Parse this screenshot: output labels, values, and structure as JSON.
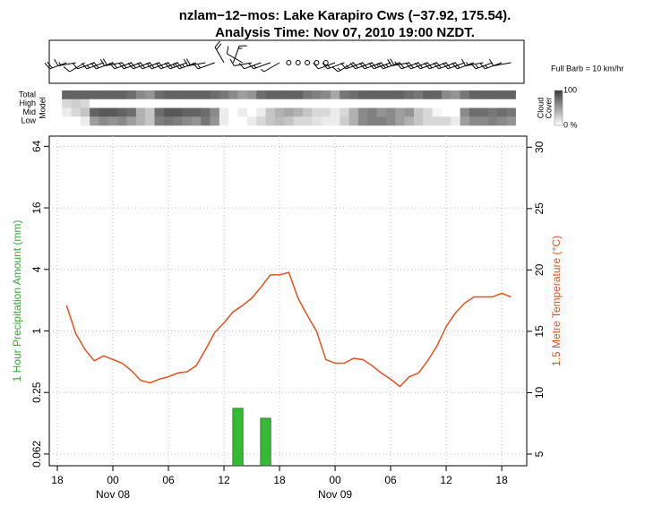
{
  "chart_data": [
    {
      "type": "barb",
      "note": "Full Barb = 10 km/hr",
      "xlim": [
        17.13,
        68.7
      ],
      "x": [
        19,
        20,
        21,
        22,
        23,
        24,
        25,
        26,
        27,
        28,
        29,
        30,
        31,
        32,
        33,
        34,
        35,
        36,
        37,
        38,
        39,
        40,
        41,
        42,
        43,
        44,
        45,
        46,
        47,
        48,
        49,
        50,
        51,
        52,
        53,
        54,
        55,
        56,
        57,
        58,
        59,
        60,
        61,
        62,
        63,
        64,
        65,
        66,
        67
      ],
      "speed": [
        20,
        15,
        10,
        10,
        15,
        20,
        20,
        20,
        20,
        20,
        20,
        20,
        20,
        25,
        25,
        20,
        15,
        20,
        15,
        10,
        10,
        10,
        15,
        5,
        0,
        0,
        0,
        0,
        0,
        10,
        15,
        15,
        15,
        20,
        20,
        25,
        25,
        25,
        20,
        20,
        20,
        20,
        20,
        20,
        20,
        15,
        15,
        15,
        10
      ],
      "direction": [
        250,
        260,
        240,
        250,
        250,
        250,
        260,
        250,
        250,
        250,
        250,
        250,
        250,
        250,
        250,
        260,
        250,
        330,
        20,
        300,
        260,
        250,
        250,
        240,
        0,
        0,
        0,
        0,
        0,
        250,
        250,
        240,
        250,
        250,
        250,
        250,
        250,
        260,
        250,
        250,
        250,
        250,
        250,
        250,
        250,
        260,
        250,
        250,
        260
      ]
    },
    {
      "type": "heatmap",
      "axis_label": "Model",
      "legend_title": [
        "Cloud",
        "Cover"
      ],
      "legend_ticks": [
        100,
        {
          "value": 0,
          "label": "0 %"
        }
      ],
      "low_color": "#ffffff",
      "high_color": "#3c3c3c",
      "xlim": [
        17.13,
        68.7
      ],
      "x": [
        19,
        20,
        21,
        22,
        23,
        24,
        25,
        26,
        27,
        28,
        29,
        30,
        31,
        32,
        33,
        34,
        35,
        36,
        37,
        38,
        39,
        40,
        41,
        42,
        43,
        44,
        45,
        46,
        47,
        48,
        49,
        50,
        51,
        52,
        53,
        54,
        55,
        56,
        57,
        58,
        59,
        60,
        61,
        62,
        63,
        64,
        65,
        66,
        67
      ],
      "rows": [
        {
          "name": "Total",
          "values": [
            80,
            80,
            80,
            80,
            80,
            80,
            80,
            75,
            60,
            55,
            75,
            80,
            80,
            80,
            80,
            80,
            75,
            70,
            60,
            50,
            55,
            75,
            80,
            80,
            80,
            80,
            70,
            65,
            60,
            45,
            70,
            75,
            80,
            80,
            80,
            80,
            80,
            75,
            70,
            80,
            80,
            60,
            55,
            70,
            80,
            80,
            80,
            80,
            80
          ]
        },
        {
          "name": "High",
          "values": [
            20,
            25,
            20,
            0,
            0,
            0,
            0,
            0,
            0,
            0,
            0,
            0,
            0,
            0,
            0,
            0,
            0,
            0,
            0,
            0,
            0,
            0,
            0,
            0,
            0,
            0,
            0,
            0,
            0,
            0,
            0,
            0,
            0,
            0,
            0,
            0,
            0,
            0,
            0,
            0,
            0,
            0,
            0,
            0,
            0,
            0,
            0,
            0,
            0
          ]
        },
        {
          "name": "Mid",
          "values": [
            10,
            20,
            30,
            80,
            85,
            85,
            80,
            75,
            40,
            30,
            75,
            85,
            85,
            80,
            80,
            75,
            60,
            10,
            0,
            10,
            0,
            10,
            30,
            40,
            45,
            40,
            30,
            20,
            20,
            10,
            20,
            40,
            60,
            65,
            55,
            60,
            50,
            55,
            30,
            20,
            5,
            0,
            0,
            60,
            75,
            75,
            70,
            75,
            70
          ]
        },
        {
          "name": "Low",
          "values": [
            0,
            0,
            10,
            50,
            60,
            55,
            60,
            50,
            40,
            30,
            65,
            70,
            65,
            60,
            55,
            70,
            55,
            10,
            0,
            0,
            10,
            20,
            30,
            35,
            30,
            20,
            20,
            15,
            10,
            10,
            25,
            40,
            60,
            65,
            65,
            60,
            50,
            40,
            30,
            20,
            20,
            20,
            10,
            50,
            60,
            60,
            65,
            60,
            55
          ]
        }
      ]
    },
    {
      "type": "line",
      "title": "nzlam−12−mos: Lake Karapiro Cws (−37.92, 175.54).",
      "subtitle": "Analysis Time: Nov 07, 2010 19:00 NZDT.",
      "ylabel": "1 Hour Precipitation Amount (mm)",
      "ylabel_color": "#33aa33",
      "y2label": "1.5 Metre Temperature (°C)",
      "y2label_color": "#e8501e",
      "xlim": [
        17.13,
        68.7
      ],
      "xticks": [
        18,
        {
          "value": 24,
          "label": "00"
        },
        {
          "value": 30,
          "label": "06"
        },
        {
          "value": 36,
          "label": "12"
        },
        {
          "value": 42,
          "label": "18"
        },
        {
          "value": 48,
          "label": "00"
        },
        {
          "value": 54,
          "label": "06"
        },
        {
          "value": 60,
          "label": "12"
        },
        {
          "value": 66,
          "label": "18"
        }
      ],
      "xdates": [
        {
          "value": 24,
          "label": "Nov 08"
        },
        {
          "value": 48,
          "label": "Nov 09"
        }
      ],
      "ylog": true,
      "ylim": [
        0.048,
        80.5
      ],
      "yticks": [
        {
          "value": 0.0625,
          "label": "0.062"
        },
        0.25,
        1,
        4,
        16,
        64
      ],
      "y2lim": [
        4.05,
        30.9
      ],
      "y2ticks": [
        5,
        10,
        15,
        20,
        25,
        30
      ],
      "grid": true,
      "series": [
        {
          "type": "bar",
          "color": "#33bb33",
          "x": [
            37.5,
            40.5
          ],
          "values": [
            0.175,
            0.14
          ]
        },
        {
          "type": "line",
          "axis": "y2",
          "color": "#e8501e",
          "x": [
            19,
            20,
            21,
            22,
            23,
            24,
            25,
            26,
            27,
            28,
            29,
            30,
            31,
            32,
            33,
            34,
            35,
            36,
            37,
            38,
            39,
            40,
            41,
            42,
            43,
            44,
            45,
            46,
            47,
            48,
            49,
            50,
            51,
            52,
            53,
            54,
            55,
            56,
            57,
            58,
            59,
            60,
            61,
            62,
            63,
            64,
            65,
            66,
            67
          ],
          "values": [
            17.1,
            14.8,
            13.5,
            12.6,
            13.0,
            12.7,
            12.4,
            11.8,
            11.0,
            10.8,
            11.1,
            11.3,
            11.6,
            11.7,
            12.2,
            13.5,
            14.9,
            15.7,
            16.6,
            17.1,
            17.7,
            18.6,
            19.6,
            19.6,
            19.8,
            17.7,
            16.3,
            15.0,
            12.7,
            12.4,
            12.4,
            12.8,
            12.7,
            12.2,
            11.6,
            11.1,
            10.5,
            11.3,
            11.6,
            12.6,
            13.8,
            15.4,
            16.5,
            17.3,
            17.8,
            17.8,
            17.8,
            18.1,
            17.8
          ]
        }
      ]
    }
  ]
}
